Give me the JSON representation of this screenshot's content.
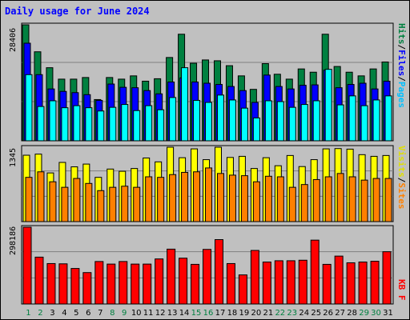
{
  "title": "Daily usage for June 2024",
  "colors": {
    "hits": "#008040",
    "files": "#0000ff",
    "pages": "#00ffff",
    "visits": "#ffff00",
    "sites": "#ff8000",
    "kbytes": "#ff0000",
    "weekend_day": "#008040",
    "weekday_day": "#000000"
  },
  "axis_labels": {
    "hits_files_pages": [
      "Pages",
      "Files",
      "Hits"
    ],
    "visits_sites": [
      "Sites",
      "Visits"
    ],
    "kbytes": "KB F"
  },
  "max_labels": {
    "hits": "28406",
    "visits": "1345",
    "kbytes": "298186"
  },
  "chart_data": {
    "type": "bar",
    "title": "Daily usage for June 2024",
    "categories": [
      "1",
      "2",
      "3",
      "4",
      "5",
      "6",
      "7",
      "8",
      "9",
      "10",
      "11",
      "12",
      "13",
      "14",
      "15",
      "16",
      "17",
      "18",
      "19",
      "20",
      "21",
      "22",
      "23",
      "24",
      "25",
      "26",
      "27",
      "28",
      "29",
      "30",
      "31"
    ],
    "weekend_days": [
      "1",
      "2",
      "8",
      "9",
      "15",
      "16",
      "22",
      "23",
      "29",
      "30"
    ],
    "panels": [
      {
        "name": "hits-files-pages",
        "ylim": [
          0,
          28406
        ],
        "series": [
          {
            "name": "Hits",
            "values": [
              28406,
              21800,
              17900,
              15100,
              15100,
              15500,
              10100,
              15500,
              15100,
              15900,
              14600,
              15200,
              20400,
              26100,
              19000,
              19800,
              19600,
              18400,
              15900,
              12600,
              18900,
              16300,
              15100,
              17600,
              16800,
              26100,
              18200,
              16800,
              15900,
              17600,
              19300
            ]
          },
          {
            "name": "Files",
            "values": [
              23900,
              16200,
              12700,
              12100,
              11800,
              11300,
              9900,
              13900,
              13100,
              13000,
              12300,
              11500,
              14400,
              15400,
              14400,
              14100,
              13800,
              13300,
              12300,
              9400,
              16100,
              13300,
              12700,
              13600,
              13700,
              17300,
              13000,
              13800,
              14100,
              12700,
              14600
            ]
          },
          {
            "name": "Pages",
            "values": [
              16200,
              8400,
              9800,
              8100,
              8600,
              8100,
              7300,
              8200,
              8900,
              7400,
              8600,
              7600,
              10600,
              17900,
              9900,
              9400,
              11200,
              10000,
              8000,
              5600,
              9800,
              9600,
              8200,
              8900,
              9800,
              17500,
              8800,
              11000,
              8600,
              10000,
              11000
            ]
          }
        ]
      },
      {
        "name": "visits-sites",
        "ylim": [
          0,
          1345
        ],
        "series": [
          {
            "name": "Visits",
            "values": [
              1200,
              1220,
              880,
              1070,
              990,
              1040,
              800,
              950,
              910,
              960,
              1150,
              1080,
              1345,
              1155,
              1315,
              1120,
              1345,
              1160,
              1180,
              960,
              1155,
              1010,
              1195,
              995,
              1120,
              1315,
              1320,
              1310,
              1210,
              1180,
              1195
            ]
          },
          {
            "name": "Sites",
            "values": [
              800,
              900,
              720,
              620,
              780,
              690,
              560,
              620,
              640,
              620,
              810,
              800,
              850,
              890,
              900,
              970,
              870,
              840,
              830,
              720,
              820,
              810,
              620,
              670,
              760,
              810,
              870,
              810,
              750,
              780,
              780
            ]
          }
        ]
      },
      {
        "name": "kbytes",
        "ylim": [
          0,
          298186
        ],
        "series": [
          {
            "name": "KB F",
            "values": [
              298186,
              182000,
              157000,
              156000,
              138000,
              122000,
              165000,
              155000,
              165000,
              155000,
              155000,
              175000,
              213000,
              178000,
              154000,
              212000,
              250000,
              157000,
              113000,
              208000,
              163000,
              168000,
              168000,
              170000,
              248000,
              154000,
              186000,
              160000,
              163000,
              166000,
              203000
            ]
          }
        ]
      }
    ]
  }
}
